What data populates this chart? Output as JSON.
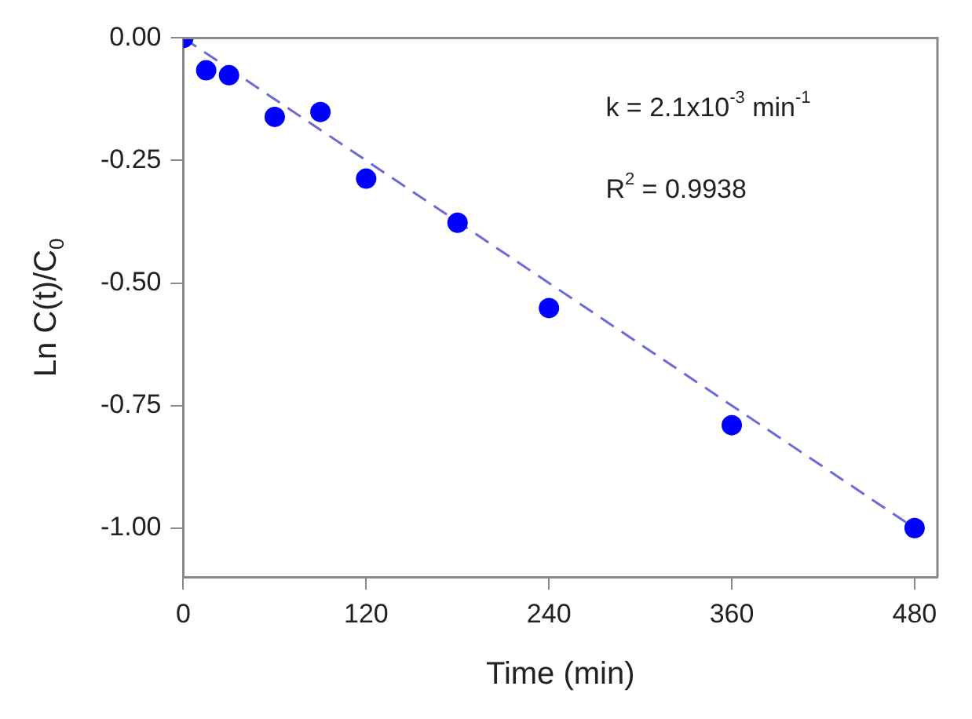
{
  "chart_data": {
    "type": "scatter",
    "xlabel": "Time (min)",
    "ylabel": "Ln C(t)/C$_{0}$",
    "xlim": [
      0,
      495
    ],
    "xticks": [
      0,
      120,
      240,
      360,
      480
    ],
    "ylim": [
      -1.1,
      0
    ],
    "yticks": [
      {
        "value": 0,
        "label": "0.00"
      },
      {
        "value": -0.25,
        "label": "-0.25"
      },
      {
        "value": -0.5,
        "label": "-0.50"
      },
      {
        "value": -0.75,
        "label": "-0.75"
      },
      {
        "value": -1,
        "label": "-1.00"
      }
    ],
    "grid": false,
    "legend": false,
    "marker": "circle",
    "series": [
      {
        "color": "#0000ff",
        "x": [
          0,
          15,
          30,
          60,
          90,
          120,
          180,
          240,
          360,
          480
        ],
        "values": [
          0,
          -0.066,
          -0.076,
          -0.161,
          -0.151,
          -0.287,
          -0.377,
          -0.551,
          -0.79,
          -1.0
        ]
      },
      {
        "type": "line",
        "color": "#6a6ad8",
        "line_style": "dashed",
        "marker": "none",
        "x": [
          0,
          480
        ],
        "values": [
          0,
          -1.0
        ]
      }
    ],
    "annotations": [
      "k = 2.1x10$^{-3}$ min$^{-1}$",
      "R$^{2}$ = 0.9938"
    ]
  }
}
